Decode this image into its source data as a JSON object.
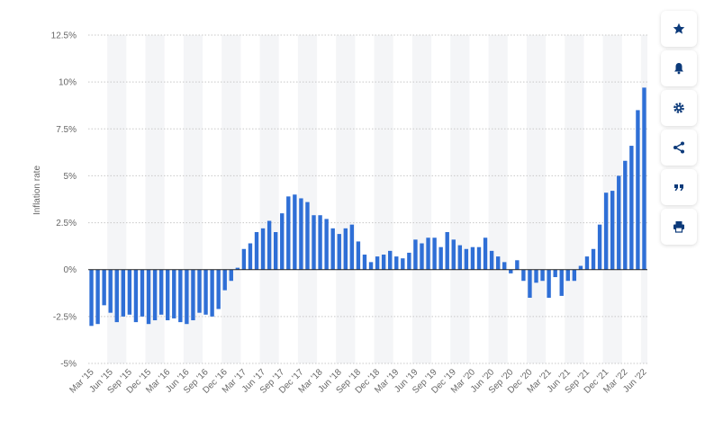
{
  "chart_data": {
    "type": "bar",
    "ylabel": "Inflation rate",
    "ylim": [
      -5,
      12.5
    ],
    "yticks": [
      "12.5%",
      "10%",
      "7.5%",
      "5%",
      "2.5%",
      "0%",
      "-2.5%",
      "-5%"
    ],
    "ytick_values": [
      12.5,
      10,
      7.5,
      5,
      2.5,
      0,
      -2.5,
      -5
    ],
    "grid": true,
    "bar_color": "#2f6fd6",
    "xtick_labels": [
      "Mar '15",
      "Jun '15",
      "Sep '15",
      "Dec '15",
      "Mar '16",
      "Jun '16",
      "Sep '16",
      "Dec '16",
      "Mar '17",
      "Jun '17",
      "Sep '17",
      "Dec '17",
      "Mar '18",
      "Jun '18",
      "Sep '18",
      "Dec '18",
      "Mar '19",
      "Jun '19",
      "Sep '19",
      "Dec '19",
      "Mar '20",
      "Jun '20",
      "Sep '20",
      "Dec '20",
      "Mar '21",
      "Jun '21",
      "Sep '21",
      "Dec '21",
      "Mar '22",
      "Jun '22"
    ],
    "categories": [
      "Mar '15",
      "Apr '15",
      "May '15",
      "Jun '15",
      "Jul '15",
      "Aug '15",
      "Sep '15",
      "Oct '15",
      "Nov '15",
      "Dec '15",
      "Jan '16",
      "Feb '16",
      "Mar '16",
      "Apr '16",
      "May '16",
      "Jun '16",
      "Jul '16",
      "Aug '16",
      "Sep '16",
      "Oct '16",
      "Nov '16",
      "Dec '16",
      "Jan '17",
      "Feb '17",
      "Mar '17",
      "Apr '17",
      "May '17",
      "Jun '17",
      "Jul '17",
      "Aug '17",
      "Sep '17",
      "Oct '17",
      "Nov '17",
      "Dec '17",
      "Jan '18",
      "Feb '18",
      "Mar '18",
      "Apr '18",
      "May '18",
      "Jun '18",
      "Jul '18",
      "Aug '18",
      "Sep '18",
      "Oct '18",
      "Nov '18",
      "Dec '18",
      "Jan '19",
      "Feb '19",
      "Mar '19",
      "Apr '19",
      "May '19",
      "Jun '19",
      "Jul '19",
      "Aug '19",
      "Sep '19",
      "Oct '19",
      "Nov '19",
      "Dec '19",
      "Jan '20",
      "Feb '20",
      "Mar '20",
      "Apr '20",
      "May '20",
      "Jun '20",
      "Jul '20",
      "Aug '20",
      "Sep '20",
      "Oct '20",
      "Nov '20",
      "Dec '20",
      "Jan '21",
      "Feb '21",
      "Mar '21",
      "Apr '21",
      "May '21",
      "Jun '21",
      "Jul '21",
      "Aug '21",
      "Sep '21",
      "Oct '21",
      "Nov '21",
      "Dec '21",
      "Jan '22",
      "Feb '22",
      "Mar '22",
      "Apr '22",
      "May '22",
      "Jun '22"
    ],
    "values": [
      -3.0,
      -2.9,
      -1.9,
      -2.3,
      -2.8,
      -2.5,
      -2.4,
      -2.8,
      -2.5,
      -2.9,
      -2.7,
      -2.4,
      -2.7,
      -2.6,
      -2.8,
      -2.9,
      -2.7,
      -2.3,
      -2.4,
      -2.5,
      -2.1,
      -1.1,
      -0.6,
      0.1,
      1.1,
      1.4,
      2.0,
      2.2,
      2.6,
      2.0,
      3.0,
      3.9,
      4.0,
      3.8,
      3.6,
      2.9,
      2.9,
      2.7,
      2.2,
      1.9,
      2.2,
      2.4,
      1.5,
      0.8,
      0.4,
      0.7,
      0.8,
      1.0,
      0.7,
      0.6,
      0.9,
      1.6,
      1.4,
      1.7,
      1.7,
      1.2,
      2.0,
      1.6,
      1.3,
      1.1,
      1.2,
      1.2,
      1.7,
      1.0,
      0.7,
      0.4,
      -0.2,
      0.5,
      -0.6,
      -1.5,
      -0.7,
      -0.6,
      -1.5,
      -0.4,
      -1.4,
      -0.6,
      -0.6,
      0.2,
      0.7,
      1.1,
      2.4,
      4.1,
      4.2,
      5.0,
      5.8,
      6.6,
      8.5,
      9.7
    ]
  },
  "toolbar": {
    "buttons": [
      {
        "name": "bookmark-button",
        "icon": "star-icon"
      },
      {
        "name": "notification-button",
        "icon": "bell-icon"
      },
      {
        "name": "settings-button",
        "icon": "gear-icon"
      },
      {
        "name": "share-button",
        "icon": "share-icon"
      },
      {
        "name": "cite-button",
        "icon": "quote-icon"
      },
      {
        "name": "print-button",
        "icon": "print-icon"
      }
    ],
    "icon_color": "#0c3a7a"
  }
}
